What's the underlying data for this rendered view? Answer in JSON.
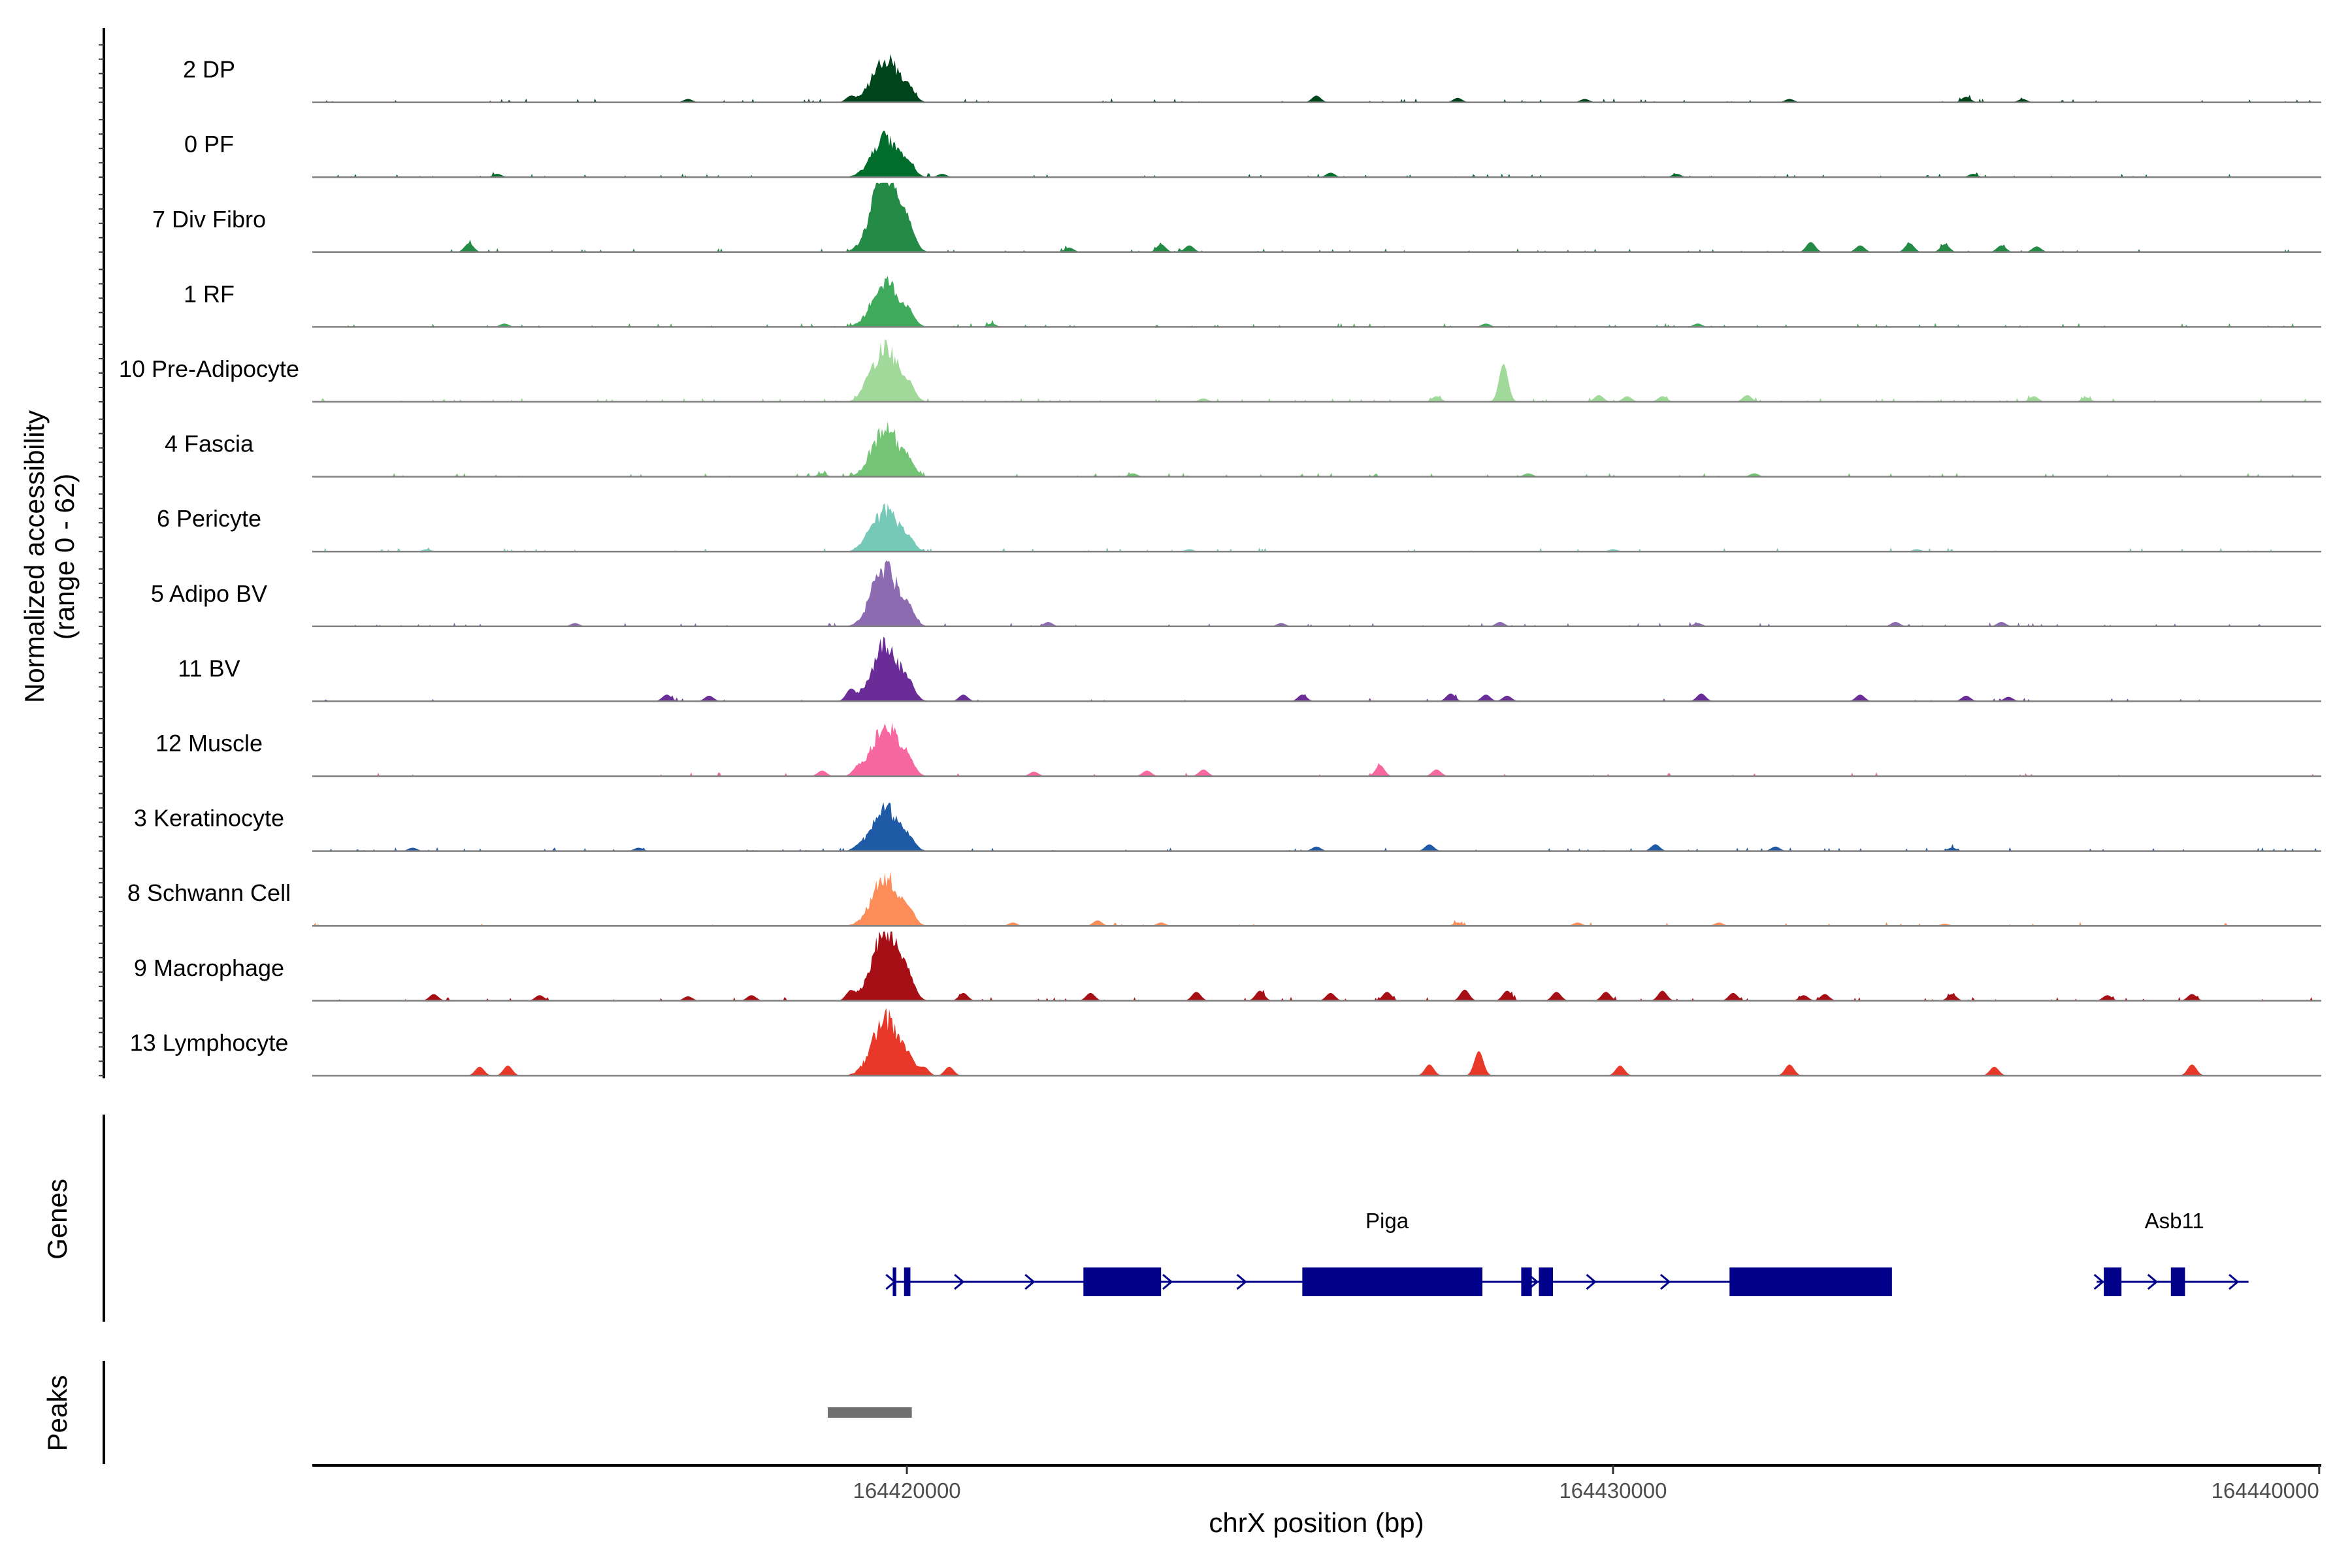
{
  "chart_data": {
    "type": "area",
    "title": "",
    "xlabel": "chrX position (bp)",
    "ylabel_line1": "Normalized accessibility",
    "ylabel_line2": "(range 0 - 62)",
    "y_range": [
      0,
      62
    ],
    "x_range": [
      164411580,
      164440030
    ],
    "x_ticks": [
      {
        "value": 164420000,
        "label": "164420000"
      },
      {
        "value": 164430000,
        "label": "164430000"
      },
      {
        "value": 164440000,
        "label": "164440000"
      }
    ],
    "tracks": [
      {
        "name": "2 DP",
        "color": "#00441b",
        "main_peak": 48,
        "noise": 0.04,
        "seed": 11,
        "minor_peaks": [
          [
            164416900,
            3
          ],
          [
            164419200,
            5
          ],
          [
            164425800,
            6
          ],
          [
            164427800,
            4
          ],
          [
            164429600,
            3
          ],
          [
            164432500,
            3
          ],
          [
            164435000,
            5
          ],
          [
            164435800,
            3
          ]
        ]
      },
      {
        "name": "0 PF",
        "color": "#006d2c",
        "main_peak": 44,
        "noise": 0.04,
        "seed": 12,
        "minor_peaks": [
          [
            164414200,
            3
          ],
          [
            164420500,
            3
          ],
          [
            164426000,
            4
          ],
          [
            164430900,
            3
          ],
          [
            164435100,
            3
          ]
        ]
      },
      {
        "name": "7 Div Fibro",
        "color": "#238b45",
        "main_peak": 90,
        "noise": 0.05,
        "seed": 13,
        "minor_peaks": [
          [
            164413800,
            8
          ],
          [
            164422300,
            4
          ],
          [
            164423600,
            7
          ],
          [
            164424000,
            6
          ],
          [
            164432800,
            9
          ],
          [
            164433500,
            6
          ],
          [
            164434200,
            8
          ],
          [
            164434700,
            7
          ],
          [
            164435500,
            6
          ],
          [
            164436000,
            5
          ]
        ]
      },
      {
        "name": "1 RF",
        "color": "#41ab5d",
        "main_peak": 50,
        "noise": 0.05,
        "seed": 14,
        "minor_peaks": [
          [
            164414300,
            3
          ],
          [
            164421200,
            3
          ],
          [
            164428200,
            3
          ],
          [
            164431200,
            3
          ]
        ]
      },
      {
        "name": "10 Pre-Adipocyte",
        "color": "#a1d99b",
        "main_peak": 58,
        "noise": 0.06,
        "seed": 15,
        "minor_peaks": [
          [
            164419400,
            4
          ],
          [
            164424200,
            3
          ],
          [
            164427500,
            5
          ],
          [
            164428450,
            34
          ],
          [
            164429800,
            6
          ],
          [
            164430200,
            5
          ],
          [
            164430700,
            5
          ],
          [
            164431900,
            6
          ],
          [
            164435960,
            5
          ],
          [
            164436700,
            4
          ]
        ]
      },
      {
        "name": "4 Fascia",
        "color": "#74c476",
        "main_peak": 52,
        "noise": 0.04,
        "seed": 16,
        "minor_peaks": [
          [
            164418800,
            3
          ],
          [
            164423200,
            3
          ],
          [
            164428800,
            3
          ],
          [
            164432000,
            3
          ]
        ]
      },
      {
        "name": "6 Pericyte",
        "color": "#76c9b8",
        "main_peak": 44,
        "noise": 0.04,
        "seed": 17,
        "minor_peaks": [
          [
            164413200,
            2
          ],
          [
            164419400,
            3
          ],
          [
            164424000,
            2
          ],
          [
            164430000,
            2
          ],
          [
            164434300,
            2
          ]
        ]
      },
      {
        "name": "5 Adipo BV",
        "color": "#8c6bb1",
        "main_peak": 62,
        "noise": 0.05,
        "seed": 18,
        "minor_peaks": [
          [
            164415300,
            3
          ],
          [
            164419500,
            4
          ],
          [
            164422000,
            4
          ],
          [
            164425300,
            3
          ],
          [
            164428400,
            4
          ],
          [
            164431200,
            3
          ],
          [
            164434000,
            4
          ],
          [
            164435500,
            4
          ]
        ]
      },
      {
        "name": "11 BV",
        "color": "#6a2c96",
        "main_peak": 62,
        "noise": 0.02,
        "seed": 19,
        "minor_peaks": [
          [
            164416600,
            6
          ],
          [
            164417200,
            5
          ],
          [
            164419200,
            10
          ],
          [
            164420800,
            6
          ],
          [
            164425600,
            6
          ],
          [
            164427700,
            7
          ],
          [
            164428200,
            6
          ],
          [
            164428500,
            5
          ],
          [
            164431250,
            7
          ],
          [
            164433500,
            6
          ],
          [
            164435000,
            5
          ],
          [
            164435600,
            4
          ]
        ]
      },
      {
        "name": "12 Muscle",
        "color": "#f768a1",
        "main_peak": 56,
        "noise": 0.02,
        "seed": 20,
        "minor_peaks": [
          [
            164418800,
            5
          ],
          [
            164419300,
            6
          ],
          [
            164421800,
            4
          ],
          [
            164423400,
            5
          ],
          [
            164424200,
            6
          ],
          [
            164426700,
            10
          ],
          [
            164427500,
            6
          ]
        ]
      },
      {
        "name": "3 Keratinocyte",
        "color": "#1f5aa6",
        "main_peak": 46,
        "noise": 0.05,
        "seed": 21,
        "minor_peaks": [
          [
            164413000,
            3
          ],
          [
            164416200,
            3
          ],
          [
            164419300,
            3
          ],
          [
            164425800,
            4
          ],
          [
            164427400,
            6
          ],
          [
            164430600,
            6
          ],
          [
            164432300,
            4
          ],
          [
            164434800,
            3
          ]
        ]
      },
      {
        "name": "8 Schwann Cell",
        "color": "#fc8d59",
        "main_peak": 54,
        "noise": 0.02,
        "seed": 22,
        "minor_peaks": [
          [
            164421500,
            3
          ],
          [
            164422700,
            5
          ],
          [
            164423600,
            3
          ],
          [
            164427800,
            3
          ],
          [
            164429500,
            3
          ],
          [
            164431500,
            3
          ],
          [
            164434700,
            2
          ]
        ]
      },
      {
        "name": "9 Macrophage",
        "color": "#a50f15",
        "main_peak": 80,
        "noise": 0.05,
        "seed": 23,
        "minor_peaks": [
          [
            164413300,
            6
          ],
          [
            164414800,
            5
          ],
          [
            164416900,
            4
          ],
          [
            164417800,
            5
          ],
          [
            164419200,
            8
          ],
          [
            164420800,
            7
          ],
          [
            164422600,
            7
          ],
          [
            164424100,
            8
          ],
          [
            164425000,
            9
          ],
          [
            164426000,
            7
          ],
          [
            164426800,
            8
          ],
          [
            164427900,
            10
          ],
          [
            164428500,
            9
          ],
          [
            164429200,
            8
          ],
          [
            164429900,
            8
          ],
          [
            164430700,
            9
          ],
          [
            164431700,
            7
          ],
          [
            164432700,
            5
          ],
          [
            164433000,
            6
          ],
          [
            164434800,
            6
          ],
          [
            164437000,
            5
          ],
          [
            164438200,
            6
          ]
        ]
      },
      {
        "name": "13 Lymphocyte",
        "color": "#e8382a",
        "main_peak": 62,
        "noise": 0.0,
        "seed": 24,
        "minor_peaks": [
          [
            164413950,
            8
          ],
          [
            164414350,
            9
          ],
          [
            164420250,
            7
          ],
          [
            164420600,
            8
          ],
          [
            164427400,
            10
          ],
          [
            164428100,
            22
          ],
          [
            164430100,
            9
          ],
          [
            164432500,
            10
          ],
          [
            164435400,
            8
          ],
          [
            164438200,
            10
          ]
        ]
      }
    ],
    "main_peak_center": 164419700,
    "genes": [
      {
        "name": "Piga",
        "start": 164419800,
        "end": 164433900,
        "label_pos": 164426800,
        "exons": [
          [
            164419800,
            164419850
          ],
          [
            164419960,
            164420050
          ],
          [
            164422500,
            164423600
          ],
          [
            164425600,
            164428150
          ],
          [
            164428700,
            164428850
          ],
          [
            164428950,
            164429150
          ],
          [
            164431650,
            164433950
          ]
        ],
        "arrows": [
          164419780,
          164420750,
          164421750,
          164423700,
          164424750,
          164428880,
          164429700,
          164430750
        ]
      },
      {
        "name": "Asb11",
        "start": 164436850,
        "end": 164439000,
        "label_pos": 164437950,
        "exons": [
          [
            164436950,
            164437200
          ],
          [
            164437900,
            164438100
          ]
        ],
        "arrows": [
          164436890,
          164437650,
          164438800
        ]
      }
    ],
    "gene_color": "#00008b",
    "genes_track_label": "Genes",
    "peaks_track_label": "Peaks",
    "peaks": [
      [
        164418880,
        164420070
      ]
    ],
    "peak_color": "#707070"
  }
}
